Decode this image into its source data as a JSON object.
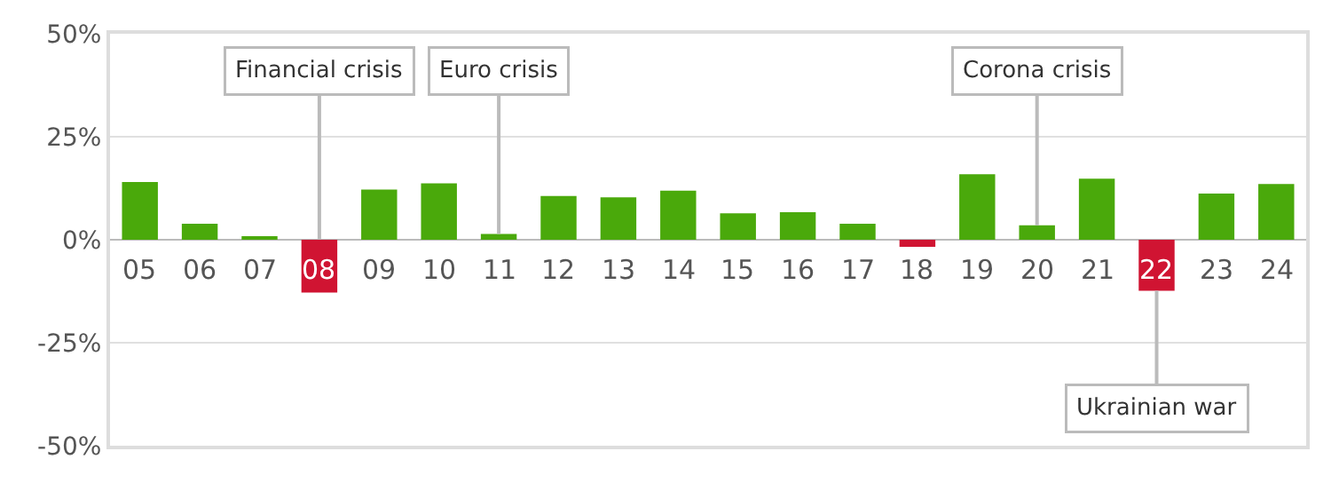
{
  "chart_data": {
    "type": "bar",
    "categories": [
      "05",
      "06",
      "07",
      "08",
      "09",
      "10",
      "11",
      "12",
      "13",
      "14",
      "15",
      "16",
      "17",
      "18",
      "19",
      "20",
      "21",
      "22",
      "23",
      "24"
    ],
    "values": [
      14.0,
      3.9,
      0.6,
      -12.8,
      12.2,
      13.7,
      1.4,
      10.6,
      10.3,
      11.9,
      6.4,
      6.7,
      3.9,
      -1.7,
      15.9,
      3.5,
      14.8,
      -12.4,
      11.2,
      13.5
    ],
    "colors": [
      "#4aa90b",
      "#4aa90b",
      "#4aa90b",
      "#d01432",
      "#4aa90b",
      "#4aa90b",
      "#4aa90b",
      "#4aa90b",
      "#4aa90b",
      "#4aa90b",
      "#4aa90b",
      "#4aa90b",
      "#4aa90b",
      "#d01432",
      "#4aa90b",
      "#4aa90b",
      "#4aa90b",
      "#d01432",
      "#4aa90b",
      "#4aa90b"
    ],
    "ylim": [
      -50,
      50
    ],
    "yticks": [
      {
        "value": -50,
        "label": "-50%"
      },
      {
        "value": -25,
        "label": "-25%"
      },
      {
        "value": 0,
        "label": "0%"
      },
      {
        "value": 25,
        "label": "25%"
      },
      {
        "value": 50,
        "label": "50%"
      }
    ],
    "grid": "y",
    "annotations": [
      {
        "text": "Financial crisis",
        "x": "08",
        "y": 0
      },
      {
        "text": "Euro crisis",
        "x": "11",
        "y": 1.4
      },
      {
        "text": "Corona crisis",
        "x": "20",
        "y": 3.5
      },
      {
        "text": "Ukrainian war",
        "x": "22",
        "y": -12.4
      }
    ]
  }
}
